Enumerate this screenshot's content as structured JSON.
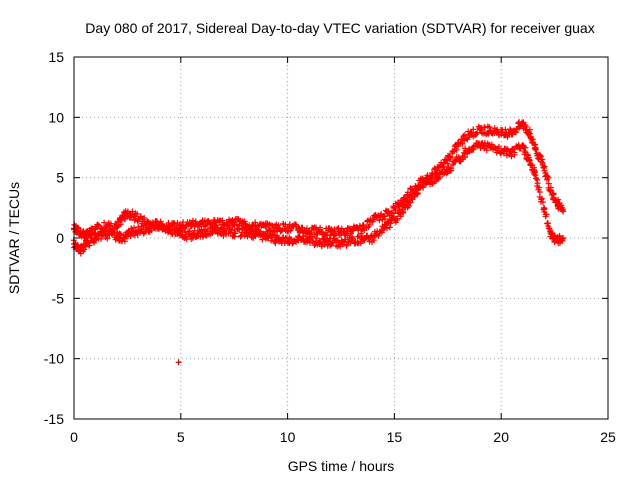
{
  "chart_data": {
    "type": "scatter",
    "title": "Day 080 of 2017, Sidereal Day-to-day VTEC variation (SDTVAR) for receiver guax",
    "xlabel": "GPS time / hours",
    "ylabel": "SDTVAR / TECUs",
    "xlim": [
      0,
      25
    ],
    "ylim": [
      -15,
      15
    ],
    "xticks": [
      "0",
      "5",
      "10",
      "15",
      "20",
      "25"
    ],
    "yticks": [
      "15",
      "10",
      "5",
      "0",
      "-5",
      "-10",
      "-15"
    ],
    "grid": true,
    "marker": "plus",
    "color": "#ff0000",
    "outlier_color": "#c00000",
    "series": [
      {
        "name": "upper track",
        "x": [
          0.0,
          0.3,
          0.6,
          1.0,
          1.5,
          2.0,
          2.3,
          2.6,
          3.0,
          3.5,
          4.0,
          4.5,
          5.0,
          5.5,
          6.0,
          6.5,
          7.0,
          7.5,
          8.0,
          8.5,
          9.0,
          9.5,
          10.0,
          10.5,
          11.0,
          11.5,
          12.0,
          12.5,
          13.0,
          13.5,
          14.0,
          14.5,
          15.0,
          15.5,
          16.0,
          16.5,
          17.0,
          17.5,
          18.0,
          18.5,
          19.0,
          19.5,
          20.0,
          20.5,
          21.0,
          21.3,
          21.6,
          22.0,
          22.3,
          22.6,
          22.9
        ],
        "y": [
          0.8,
          0.5,
          0.2,
          0.7,
          1.0,
          0.9,
          1.8,
          2.0,
          1.6,
          1.2,
          1.1,
          0.9,
          1.0,
          1.2,
          1.3,
          1.2,
          1.1,
          1.3,
          1.2,
          1.0,
          0.9,
          0.8,
          0.9,
          0.8,
          0.6,
          0.5,
          0.5,
          0.5,
          0.6,
          0.7,
          1.5,
          1.8,
          2.5,
          3.3,
          4.3,
          5.0,
          5.6,
          6.5,
          7.8,
          8.6,
          9.0,
          8.9,
          8.6,
          8.8,
          9.5,
          8.8,
          7.5,
          5.8,
          4.0,
          3.0,
          2.2
        ]
      },
      {
        "name": "lower track",
        "x": [
          0.0,
          0.3,
          0.6,
          1.0,
          1.5,
          2.0,
          2.3,
          2.6,
          3.0,
          3.5,
          4.0,
          4.5,
          5.0,
          5.5,
          6.0,
          6.5,
          7.0,
          7.5,
          8.0,
          8.5,
          9.0,
          9.5,
          10.0,
          10.5,
          11.0,
          11.5,
          12.0,
          12.5,
          13.0,
          13.5,
          14.0,
          14.5,
          15.0,
          15.5,
          16.0,
          16.5,
          17.0,
          17.5,
          18.0,
          18.5,
          19.0,
          19.5,
          20.0,
          20.5,
          21.0,
          21.3,
          21.6,
          22.0,
          22.3,
          22.6,
          22.9
        ],
        "y": [
          -0.5,
          -1.0,
          -0.4,
          -0.1,
          0.3,
          0.2,
          0.0,
          0.4,
          0.6,
          0.8,
          0.9,
          0.7,
          0.3,
          0.2,
          0.4,
          0.6,
          0.5,
          0.4,
          0.5,
          0.3,
          0.1,
          -0.1,
          -0.3,
          -0.2,
          -0.1,
          -0.4,
          -0.3,
          -0.4,
          -0.2,
          -0.1,
          0.0,
          0.8,
          1.5,
          2.5,
          3.8,
          4.6,
          5.0,
          5.6,
          6.5,
          7.4,
          7.8,
          7.5,
          7.2,
          7.1,
          7.6,
          6.5,
          5.2,
          2.5,
          0.5,
          -0.2,
          0.0
        ]
      }
    ],
    "outliers": [
      {
        "x": 4.9,
        "y": -10.3
      }
    ]
  }
}
